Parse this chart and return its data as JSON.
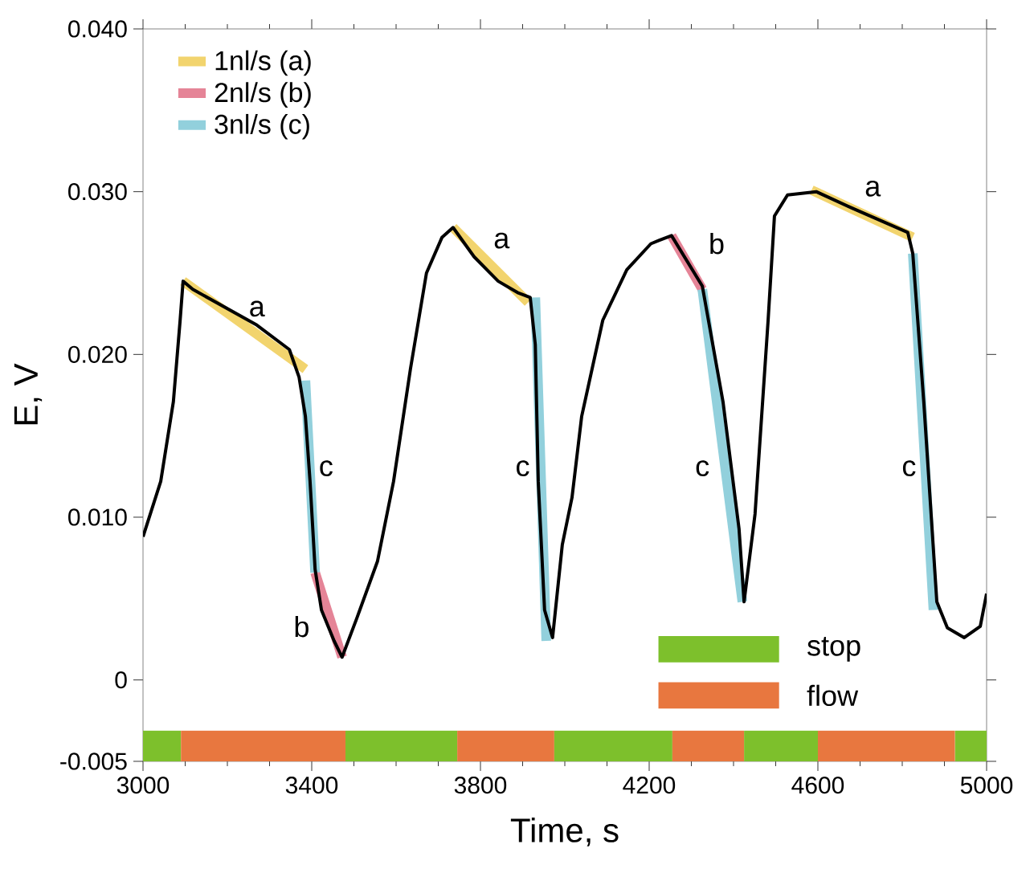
{
  "chart_data": {
    "type": "line",
    "xlabel": "Time, s",
    "ylabel": "E, V",
    "xlim": [
      3000,
      5000
    ],
    "ylim": [
      -0.005,
      0.04
    ],
    "xticks": [
      3000,
      3400,
      3800,
      4200,
      4600,
      5000
    ],
    "yticks": [
      {
        "value": -0.005,
        "label": "-0.005"
      },
      0,
      {
        "value": 0.01,
        "label": "0.010"
      },
      {
        "value": 0.02,
        "label": "0.020"
      },
      {
        "value": 0.03,
        "label": "0.030"
      },
      {
        "value": 0.04,
        "label": "0.040"
      }
    ],
    "grid": false,
    "legend": "top left",
    "marker": "none",
    "line_style": "solid",
    "series": [
      {
        "name": "1nl/s  (a)",
        "color": "#f2d46e",
        "x": [
          3095,
          3385,
          3500,
          3735,
          3913,
          4000,
          4585,
          4825
        ],
        "values": [
          0.0245,
          0.0191,
          null,
          0.0278,
          0.0232,
          null,
          0.0301,
          0.0272
        ]
      },
      {
        "name": "2nl/s  (b)",
        "color": "#e58497",
        "x": [
          3408,
          3472,
          3600,
          4253,
          4326
        ],
        "values": [
          0.0066,
          0.0014,
          null,
          0.0273,
          0.024
        ]
      },
      {
        "name": "3nl/s  (c)",
        "color": "#92d0dc",
        "x": [
          3385,
          3408,
          3500,
          3930,
          3956,
          4100,
          4326,
          4421,
          4600,
          4825,
          4874
        ],
        "values": [
          0.0184,
          0.0066,
          null,
          0.0235,
          0.0024,
          null,
          0.024,
          0.0048,
          null,
          0.0262,
          0.0043
        ]
      },
      {
        "color": "#000000",
        "x": [
          3000,
          3042,
          3072,
          3088,
          3095,
          3118,
          3194,
          3270,
          3347,
          3370,
          3385,
          3396,
          3408,
          3423,
          3453,
          3472,
          3507,
          3556,
          3594,
          3634,
          3672,
          3709,
          3735,
          3785,
          3842,
          3888,
          3918,
          3930,
          3937,
          3952,
          3971,
          3994,
          4017,
          4040,
          4090,
          4147,
          4204,
          4223,
          4253,
          4326,
          4375,
          4413,
          4425,
          4451,
          4482,
          4497,
          4528,
          4596,
          4680,
          4813,
          4825,
          4851,
          4882,
          4907,
          4947,
          4985,
          5000
        ],
        "values": [
          0.0088,
          0.0122,
          0.0171,
          0.0221,
          0.0245,
          0.024,
          0.0229,
          0.0218,
          0.0203,
          0.0186,
          0.0162,
          0.0122,
          0.0068,
          0.0043,
          0.0024,
          0.0014,
          0.0038,
          0.0073,
          0.0122,
          0.0191,
          0.025,
          0.0272,
          0.0278,
          0.026,
          0.0245,
          0.0238,
          0.0235,
          0.0206,
          0.0122,
          0.0043,
          0.0026,
          0.0083,
          0.0112,
          0.0162,
          0.0221,
          0.0252,
          0.0268,
          0.027,
          0.0273,
          0.0242,
          0.0171,
          0.0093,
          0.0048,
          0.0102,
          0.0221,
          0.0285,
          0.0298,
          0.03,
          0.029,
          0.0275,
          0.0262,
          0.0171,
          0.0048,
          0.0032,
          0.0026,
          0.0033,
          0.0053
        ]
      }
    ],
    "bands": [
      {
        "axis": "x",
        "from": 3000,
        "to": 3090,
        "label": "stop",
        "color": "#7dc02c"
      },
      {
        "axis": "x",
        "from": 3090,
        "to": 3480,
        "label": "flow",
        "color": "#e8773f"
      },
      {
        "axis": "x",
        "from": 3480,
        "to": 3745,
        "color": "#7dc02c"
      },
      {
        "axis": "x",
        "from": 3745,
        "to": 3975,
        "color": "#e8773f"
      },
      {
        "axis": "x",
        "from": 3975,
        "to": 4255,
        "color": "#7dc02c"
      },
      {
        "axis": "x",
        "from": 4255,
        "to": 4425,
        "color": "#e8773f"
      },
      {
        "axis": "x",
        "from": 4425,
        "to": 4600,
        "color": "#7dc02c"
      },
      {
        "axis": "x",
        "from": 4600,
        "to": 4925,
        "color": "#e8773f"
      },
      {
        "axis": "x",
        "from": 4925,
        "to": 5000,
        "color": "#7dc02c"
      }
    ],
    "annotations": [
      "a",
      "a",
      "a",
      "b",
      "b",
      "c",
      "c",
      "c",
      "c"
    ]
  }
}
